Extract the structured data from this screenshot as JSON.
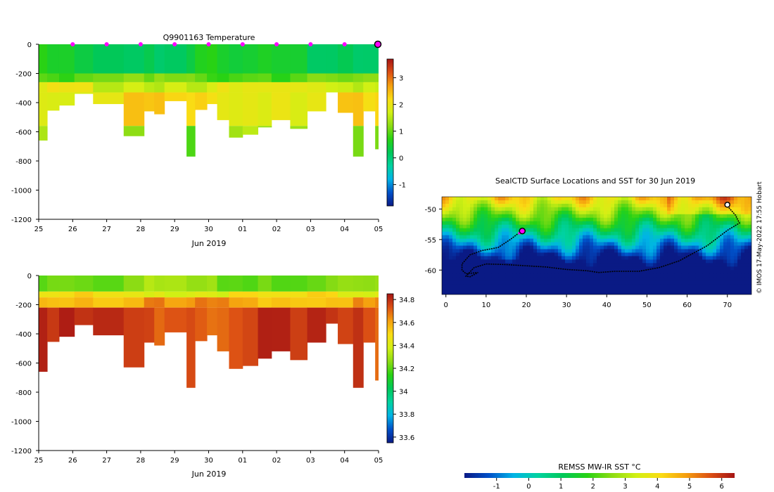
{
  "colors": {
    "temperature_ramp": [
      "#0a1a85",
      "#0050c8",
      "#00b4e6",
      "#00d2a0",
      "#00c85a",
      "#28d214",
      "#8cdc14",
      "#d2f014",
      "#fadc14",
      "#f5a00f",
      "#dc5014",
      "#a51414"
    ],
    "salinity_ramp": [
      "#0a1a85",
      "#0050c8",
      "#00b4e6",
      "#00d2a0",
      "#00c85a",
      "#28d214",
      "#8cdc14",
      "#d2f014",
      "#fadc14",
      "#f5a00f",
      "#dc5014",
      "#a51414"
    ],
    "sst_ramp": [
      "#0a1a85",
      "#0050c8",
      "#00b4e6",
      "#00d2a0",
      "#00c85a",
      "#28d214",
      "#8cdc14",
      "#d2f014",
      "#fadc14",
      "#f5a00f",
      "#dc5014",
      "#a51414"
    ],
    "marker": "#ff00ff",
    "track": "#000000"
  },
  "chart_data": [
    {
      "type": "heatmap",
      "title": "Q9901163  Temperature",
      "xlabel": "Jun 2019",
      "ylabel": "",
      "x_ticks": [
        "25",
        "26",
        "27",
        "28",
        "29",
        "30",
        "01",
        "02",
        "03",
        "04",
        "05"
      ],
      "xlim": [
        0,
        10
      ],
      "ylim": [
        -1200,
        0
      ],
      "y_ticks": [
        0,
        -200,
        -400,
        -600,
        -800,
        -1000,
        -1200
      ],
      "colorbar": {
        "min": -1.8,
        "max": 3.7,
        "ticks": [
          -1,
          0,
          1,
          2,
          3
        ]
      },
      "profiles": [
        {
          "t": 0.0,
          "depth": 660
        },
        {
          "t": 0.25,
          "depth": 455
        },
        {
          "t": 0.6,
          "depth": 420
        },
        {
          "t": 1.05,
          "depth": 340
        },
        {
          "t": 1.6,
          "depth": 410
        },
        {
          "t": 2.5,
          "depth": 630
        },
        {
          "t": 3.1,
          "depth": 460
        },
        {
          "t": 3.4,
          "depth": 480
        },
        {
          "t": 3.7,
          "depth": 390
        },
        {
          "t": 4.35,
          "depth": 770
        },
        {
          "t": 4.6,
          "depth": 450
        },
        {
          "t": 4.95,
          "depth": 410
        },
        {
          "t": 5.25,
          "depth": 520
        },
        {
          "t": 5.6,
          "depth": 640
        },
        {
          "t": 6.0,
          "depth": 620
        },
        {
          "t": 6.45,
          "depth": 570
        },
        {
          "t": 6.85,
          "depth": 520
        },
        {
          "t": 7.4,
          "depth": 580
        },
        {
          "t": 7.9,
          "depth": 460
        },
        {
          "t": 8.45,
          "depth": 330
        },
        {
          "t": 8.8,
          "depth": 470
        },
        {
          "t": 9.25,
          "depth": 770
        },
        {
          "t": 9.55,
          "depth": 460
        },
        {
          "t": 9.9,
          "depth": 720
        },
        {
          "t": 10.0,
          "depth": 500
        }
      ],
      "layers_temperature": [
        {
          "from": 0,
          "to": 200,
          "value": 0.4
        },
        {
          "from": 200,
          "to": 260,
          "value": 1.0
        },
        {
          "from": 260,
          "to": 330,
          "value": 1.8
        },
        {
          "from": 330,
          "to": 560,
          "value": 2.1
        },
        {
          "from": 560,
          "to": 1200,
          "value": 1.2
        }
      ],
      "markers_x": [
        1,
        2,
        3,
        4,
        5,
        6,
        7,
        8,
        9
      ],
      "current_marker_x": 10
    },
    {
      "type": "heatmap",
      "title": "",
      "xlabel": "Jun 2019",
      "x_ticks": [
        "25",
        "26",
        "27",
        "28",
        "29",
        "30",
        "01",
        "02",
        "03",
        "04",
        "05"
      ],
      "xlim": [
        0,
        10
      ],
      "ylim": [
        -1200,
        0
      ],
      "y_ticks": [
        0,
        -200,
        -400,
        -600,
        -800,
        -1000,
        -1200
      ],
      "colorbar": {
        "min": 33.55,
        "max": 34.85,
        "ticks": [
          33.6,
          33.8,
          34,
          34.2,
          34.4,
          34.6,
          34.8
        ]
      },
      "layers_salinity": [
        {
          "from": 0,
          "to": 110,
          "value": 34.25
        },
        {
          "from": 110,
          "to": 150,
          "value": 34.45
        },
        {
          "from": 150,
          "to": 220,
          "value": 34.6
        },
        {
          "from": 220,
          "to": 1200,
          "value": 34.75
        }
      ]
    },
    {
      "type": "heatmap",
      "title": "SealCTD Surface Locations and SST for 30 Jun 2019",
      "xlabel": "",
      "ylabel": "",
      "x_ticks": [
        0,
        10,
        20,
        30,
        40,
        50,
        60,
        70
      ],
      "xlim": [
        -1,
        76
      ],
      "y_ticks": [
        -50,
        -55,
        -60
      ],
      "ylim": [
        -64,
        -48
      ],
      "colorbar": {
        "label": "REMSS MW-IR SST °C",
        "min": -2,
        "max": 6.4,
        "ticks": [
          -1,
          0,
          1,
          2,
          3,
          4,
          5,
          6
        ]
      },
      "track": [
        [
          70,
          -49.5
        ],
        [
          72,
          -51
        ],
        [
          73,
          -52.3
        ],
        [
          70,
          -53.5
        ],
        [
          65,
          -56
        ],
        [
          58,
          -58.5
        ],
        [
          53,
          -59.6
        ],
        [
          48,
          -60.2
        ],
        [
          42,
          -60.2
        ],
        [
          38,
          -60.4
        ],
        [
          35,
          -60.1
        ],
        [
          30,
          -59.9
        ],
        [
          25,
          -59.5
        ],
        [
          20,
          -59.3
        ],
        [
          15,
          -59.1
        ],
        [
          10,
          -59.0
        ],
        [
          7,
          -59.6
        ],
        [
          6,
          -60.3
        ],
        [
          5,
          -61.0
        ],
        [
          6,
          -61.1
        ],
        [
          8,
          -60.4
        ],
        [
          5,
          -60.6
        ],
        [
          4,
          -60.0
        ],
        [
          4,
          -59.0
        ],
        [
          6,
          -57.5
        ],
        [
          9,
          -56.8
        ],
        [
          13,
          -56.3
        ],
        [
          16,
          -55.0
        ],
        [
          18,
          -54.0
        ],
        [
          19,
          -53.6
        ]
      ],
      "current_location": [
        19,
        -53.6
      ],
      "start_location": [
        70,
        -49.3
      ]
    }
  ],
  "labels": {
    "timestamp": "© IMOS 17-May-2022 17:55 Hobart"
  }
}
